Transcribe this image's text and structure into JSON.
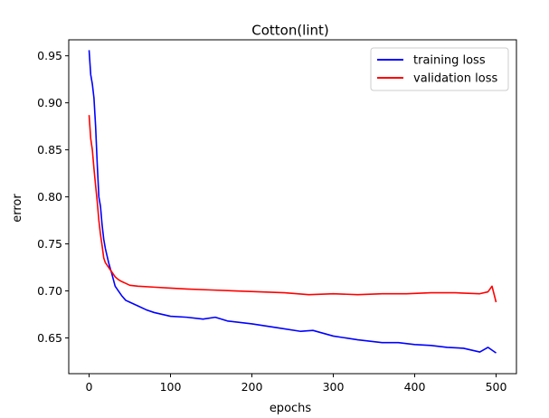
{
  "chart_data": {
    "type": "line",
    "title": "Cotton(lint)",
    "xlabel": "epochs",
    "ylabel": "error",
    "xlim": [
      -25,
      525
    ],
    "ylim": [
      0.612,
      0.967
    ],
    "xticks": [
      0,
      100,
      200,
      300,
      400,
      500
    ],
    "xtick_labels": [
      "0",
      "100",
      "200",
      "300",
      "400",
      "500"
    ],
    "yticks": [
      0.65,
      0.7,
      0.75,
      0.8,
      0.85,
      0.9,
      0.95
    ],
    "ytick_labels": [
      "0.65",
      "0.70",
      "0.75",
      "0.80",
      "0.85",
      "0.90",
      "0.95"
    ],
    "grid": false,
    "legend_position": "top-right",
    "series": [
      {
        "name": "training loss",
        "color": "#0000ff",
        "x": [
          0,
          2,
          4,
          6,
          8,
          10,
          12,
          14,
          16,
          18,
          20,
          24,
          28,
          32,
          36,
          40,
          45,
          50,
          60,
          70,
          80,
          100,
          120,
          140,
          155,
          170,
          200,
          230,
          260,
          275,
          300,
          330,
          360,
          380,
          400,
          420,
          440,
          460,
          480,
          490,
          500
        ],
        "y": [
          0.956,
          0.93,
          0.92,
          0.905,
          0.875,
          0.835,
          0.8,
          0.79,
          0.77,
          0.755,
          0.745,
          0.73,
          0.718,
          0.705,
          0.7,
          0.695,
          0.69,
          0.688,
          0.684,
          0.68,
          0.677,
          0.673,
          0.672,
          0.67,
          0.672,
          0.668,
          0.665,
          0.661,
          0.657,
          0.658,
          0.652,
          0.648,
          0.645,
          0.645,
          0.643,
          0.642,
          0.64,
          0.639,
          0.635,
          0.64,
          0.634
        ]
      },
      {
        "name": "validation loss",
        "color": "#ff0000",
        "x": [
          0,
          2,
          4,
          6,
          8,
          10,
          12,
          14,
          16,
          18,
          20,
          24,
          28,
          32,
          36,
          40,
          45,
          50,
          60,
          80,
          100,
          120,
          150,
          180,
          210,
          240,
          270,
          300,
          330,
          360,
          390,
          420,
          450,
          480,
          490,
          495,
          500
        ],
        "y": [
          0.887,
          0.862,
          0.85,
          0.83,
          0.812,
          0.795,
          0.775,
          0.76,
          0.748,
          0.735,
          0.73,
          0.725,
          0.72,
          0.715,
          0.712,
          0.71,
          0.708,
          0.706,
          0.705,
          0.704,
          0.703,
          0.702,
          0.701,
          0.7,
          0.699,
          0.698,
          0.696,
          0.697,
          0.696,
          0.697,
          0.697,
          0.698,
          0.698,
          0.697,
          0.699,
          0.705,
          0.688
        ]
      }
    ]
  }
}
